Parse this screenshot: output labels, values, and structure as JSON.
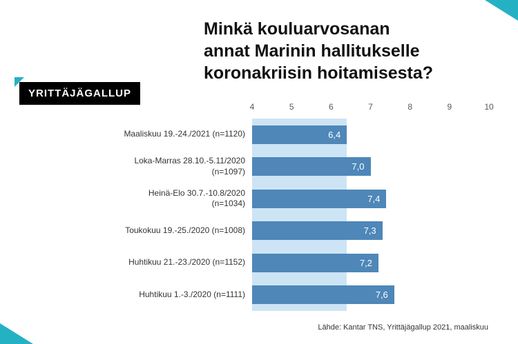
{
  "logo": {
    "text": "YRITTÄJÄGALLUP"
  },
  "title_lines": [
    "Minkä kouluarvosanan",
    "annat Marinin hallitukselle",
    "koronakriisin hoitamisesta?"
  ],
  "source": "Lähde: Kantar TNS, Yrittäjägallup 2021, maaliskuu",
  "colors": {
    "accent": "#25b1c4",
    "logo_bg": "#000000",
    "bar": "#4e87b8",
    "band": "#cde4f5"
  },
  "chart_data": {
    "type": "bar",
    "orientation": "horizontal",
    "title": "Minkä kouluarvosanan annat Marinin hallitukselle koronakriisin hoitamisesta?",
    "categories": [
      "Maaliskuu 19.-24./2021 (n=1120)",
      "Loka-Marras 28.10.-5.11/2020\n(n=1097)",
      "Heinä-Elo 30.7.-10.8/2020\n(n=1034)",
      "Toukokuu 19.-25./2020 (n=1008)",
      "Huhtikuu 21.-23./2020 (n=1152)",
      "Huhtikuu 1.-3./2020 (n=1111)"
    ],
    "values": [
      6.4,
      7.0,
      7.4,
      7.3,
      7.2,
      7.6
    ],
    "value_labels": [
      "6,4",
      "7,0",
      "7,4",
      "7,3",
      "7,2",
      "7,6"
    ],
    "xlim": [
      4,
      10
    ],
    "x_ticks": [
      4,
      5,
      6,
      7,
      8,
      9,
      10
    ],
    "highlight_band": {
      "from": 4,
      "to": 6.4
    },
    "grid": false,
    "legend": "none"
  }
}
